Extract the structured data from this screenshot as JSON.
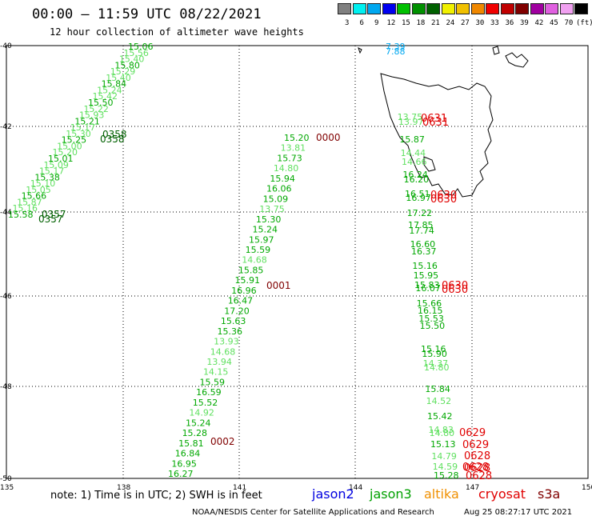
{
  "header": {
    "title": "00:00 – 11:59 UTC 08/22/2021",
    "subtitle": "12 hour collection of altimeter wave heights"
  },
  "legend": {
    "unit": "(ft)",
    "swatches": [
      {
        "color": "#808080",
        "label": "3"
      },
      {
        "color": "#00f0f0",
        "label": "6"
      },
      {
        "color": "#00a8f0",
        "label": "9"
      },
      {
        "color": "#0000f0",
        "label": "12"
      },
      {
        "color": "#00c000",
        "label": "15"
      },
      {
        "color": "#009000",
        "label": "18"
      },
      {
        "color": "#006000",
        "label": "21"
      },
      {
        "color": "#f0f000",
        "label": "24"
      },
      {
        "color": "#f0c000",
        "label": "27"
      },
      {
        "color": "#f08800",
        "label": "30"
      },
      {
        "color": "#f00000",
        "label": "33"
      },
      {
        "color": "#c00000",
        "label": "36"
      },
      {
        "color": "#800000",
        "label": "39"
      },
      {
        "color": "#a000a0",
        "label": "42"
      },
      {
        "color": "#e060e0",
        "label": "45"
      },
      {
        "color": "#f0a0f0",
        "label": "70"
      },
      {
        "color": "#000000",
        "label": ""
      }
    ]
  },
  "axes": {
    "lat_labels": [
      "-40",
      "-42",
      "-44",
      "-46",
      "-48",
      "-50"
    ],
    "lon_labels": [
      "135",
      "138",
      "141",
      "144",
      "147",
      "150"
    ]
  },
  "track_west": {
    "values": [
      "15.06",
      "15.56",
      "15.40",
      "15.80",
      "15.29",
      "15.40",
      "15.84",
      "15.24",
      "15.42",
      "15.50",
      "15.22",
      "15.93",
      "15.21",
      "15.17",
      "15.30",
      "15.25",
      "15.00",
      "15.20",
      "15.01",
      "15.09",
      "15.17",
      "15.38",
      "15.10",
      "15.05",
      "15.66",
      "15.87",
      "15.16",
      "15.58"
    ],
    "times": [
      "0358",
      "0358",
      "0357",
      "0357"
    ]
  },
  "track_mid": {
    "values": [
      {
        "v": "15.20",
        "c": "#00a800"
      },
      {
        "v": "13.81",
        "c": "#60e060"
      },
      {
        "v": "15.73",
        "c": "#00a800"
      },
      {
        "v": "14.80",
        "c": "#60e060"
      },
      {
        "v": "15.94",
        "c": "#00a800"
      },
      {
        "v": "16.06",
        "c": "#00a800"
      },
      {
        "v": "15.09",
        "c": "#00a800"
      },
      {
        "v": "13.75",
        "c": "#60e060"
      },
      {
        "v": "15.30",
        "c": "#00a800"
      },
      {
        "v": "15.24",
        "c": "#00a800"
      },
      {
        "v": "15.97",
        "c": "#00a800"
      },
      {
        "v": "15.59",
        "c": "#00a800"
      },
      {
        "v": "14.68",
        "c": "#60e060"
      },
      {
        "v": "15.85",
        "c": "#00a800"
      },
      {
        "v": "15.91",
        "c": "#00a800"
      },
      {
        "v": "16.96",
        "c": "#00a800"
      },
      {
        "v": "16.47",
        "c": "#00a800"
      },
      {
        "v": "17.20",
        "c": "#00a800"
      },
      {
        "v": "15.63",
        "c": "#00a800"
      },
      {
        "v": "15.36",
        "c": "#00a800"
      },
      {
        "v": "13.93",
        "c": "#60e060"
      },
      {
        "v": "14.68",
        "c": "#60e060"
      },
      {
        "v": "13.94",
        "c": "#60e060"
      },
      {
        "v": "14.15",
        "c": "#60e060"
      },
      {
        "v": "15.59",
        "c": "#00a800"
      },
      {
        "v": "16.59",
        "c": "#00a800"
      },
      {
        "v": "15.52",
        "c": "#00a800"
      },
      {
        "v": "14.92",
        "c": "#60e060"
      },
      {
        "v": "15.24",
        "c": "#00a800"
      },
      {
        "v": "15.28",
        "c": "#00a800"
      },
      {
        "v": "15.81",
        "c": "#00a800"
      },
      {
        "v": "16.84",
        "c": "#00a800"
      },
      {
        "v": "16.95",
        "c": "#00a800"
      },
      {
        "v": "16.27",
        "c": "#00a800"
      }
    ],
    "times": [
      "0000",
      "0001",
      "0002"
    ]
  },
  "track_east": {
    "values": [
      {
        "v": "7.39",
        "c": "#00a8f0"
      },
      {
        "v": "7.88",
        "c": "#00a8f0"
      },
      {
        "v": "13.75",
        "c": "#60e060"
      },
      {
        "v": "13.97",
        "c": "#60e060"
      },
      {
        "v": "15.87",
        "c": "#00a800"
      },
      {
        "v": "14.44",
        "c": "#60e060"
      },
      {
        "v": "14.66",
        "c": "#60e060"
      },
      {
        "v": "16.24",
        "c": "#00a800"
      },
      {
        "v": "16.20",
        "c": "#00a800"
      },
      {
        "v": "16.51",
        "c": "#00a800"
      },
      {
        "v": "16.97",
        "c": "#00a800"
      },
      {
        "v": "17.22",
        "c": "#00a800"
      },
      {
        "v": "17.85",
        "c": "#00a800"
      },
      {
        "v": "17.74",
        "c": "#00a800"
      },
      {
        "v": "16.60",
        "c": "#00a800"
      },
      {
        "v": "16.37",
        "c": "#00a800"
      },
      {
        "v": "15.16",
        "c": "#00a800"
      },
      {
        "v": "15.95",
        "c": "#00a800"
      },
      {
        "v": "15.83",
        "c": "#00a800"
      },
      {
        "v": "16.07",
        "c": "#00a800"
      },
      {
        "v": "15.66",
        "c": "#00a800"
      },
      {
        "v": "16.15",
        "c": "#00a800"
      },
      {
        "v": "15.53",
        "c": "#00a800"
      },
      {
        "v": "15.50",
        "c": "#00a800"
      },
      {
        "v": "15.16",
        "c": "#00a800"
      },
      {
        "v": "15.90",
        "c": "#00a800"
      },
      {
        "v": "14.37",
        "c": "#60e060"
      },
      {
        "v": "14.80",
        "c": "#60e060"
      },
      {
        "v": "15.84",
        "c": "#00a800"
      },
      {
        "v": "14.52",
        "c": "#60e060"
      },
      {
        "v": "15.42",
        "c": "#00a800"
      },
      {
        "v": "14.83",
        "c": "#60e060"
      },
      {
        "v": "14.80",
        "c": "#60e060"
      },
      {
        "v": "15.13",
        "c": "#00a800"
      },
      {
        "v": "14.79",
        "c": "#60e060"
      },
      {
        "v": "14.59",
        "c": "#60e060"
      },
      {
        "v": "15.28",
        "c": "#00a800"
      }
    ],
    "times": [
      "0631",
      "0631",
      "0630",
      "0630",
      "0630",
      "0630",
      "0629",
      "0629",
      "0628",
      "0628",
      "0628",
      "0628"
    ]
  },
  "footer": {
    "note": "note: 1) Time is in UTC; 2) SWH is in feet",
    "satellites": [
      {
        "name": "jason2",
        "color": "#0000e0"
      },
      {
        "name": "jason3",
        "color": "#00a000"
      },
      {
        "name": "altika",
        "color": "#f09000"
      },
      {
        "name": "cryosat",
        "color": "#e00000"
      },
      {
        "name": "s3a",
        "color": "#800000"
      }
    ],
    "credit": "NOAA/NESDIS Center for Satellite Applications and Research",
    "stamp": "Aug 25 08:27:17 UTC 2021"
  }
}
